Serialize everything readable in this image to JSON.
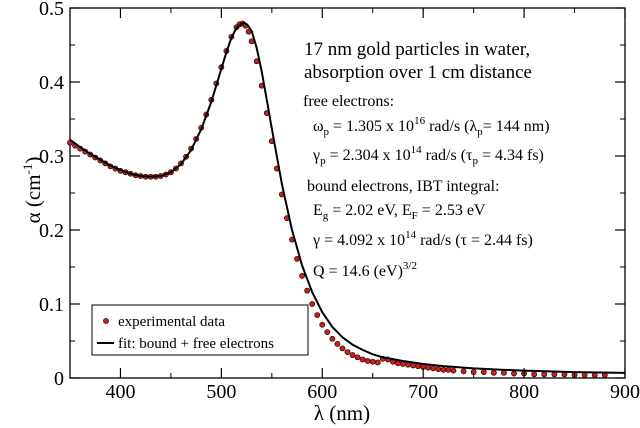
{
  "chart_data": {
    "type": "scatter",
    "xlabel": "λ (nm)",
    "ylabel": "α (cm",
    "ylabel_sup": "-1",
    "ylabel_close": ")",
    "xlim": [
      350,
      900
    ],
    "ylim": [
      0,
      0.5
    ],
    "x_ticks": [
      400,
      500,
      600,
      700,
      800,
      900
    ],
    "y_ticks": [
      0,
      0.1,
      0.2,
      0.3,
      0.4,
      0.5
    ],
    "y_tick_labels": [
      "0",
      "0.1",
      "0.2",
      "0.3",
      "0.4",
      "0.5"
    ],
    "grid": false,
    "legend_position": "bottom-left",
    "series": [
      {
        "name": "experimental data",
        "kind": "markers",
        "color": "#cc1f1a",
        "x": [
          350,
          355,
          360,
          365,
          370,
          375,
          380,
          385,
          390,
          395,
          400,
          405,
          410,
          415,
          420,
          425,
          430,
          435,
          440,
          445,
          450,
          455,
          460,
          465,
          470,
          475,
          480,
          485,
          490,
          495,
          500,
          505,
          510,
          515,
          518,
          521,
          524,
          527,
          530,
          535,
          540,
          545,
          550,
          555,
          560,
          565,
          570,
          575,
          580,
          585,
          590,
          595,
          600,
          605,
          610,
          615,
          620,
          625,
          630,
          635,
          640,
          645,
          650,
          655,
          660,
          665,
          670,
          675,
          680,
          685,
          690,
          695,
          700,
          705,
          710,
          715,
          720,
          725,
          730,
          740,
          750,
          760,
          770,
          780,
          790,
          800,
          810,
          820,
          830,
          840,
          850,
          860,
          870,
          880
        ],
        "y": [
          0.318,
          0.314,
          0.31,
          0.306,
          0.302,
          0.298,
          0.294,
          0.29,
          0.286,
          0.283,
          0.28,
          0.278,
          0.276,
          0.274,
          0.273,
          0.272,
          0.272,
          0.272,
          0.273,
          0.275,
          0.278,
          0.283,
          0.29,
          0.299,
          0.31,
          0.323,
          0.338,
          0.356,
          0.376,
          0.398,
          0.42,
          0.442,
          0.461,
          0.474,
          0.478,
          0.479,
          0.476,
          0.468,
          0.455,
          0.428,
          0.395,
          0.358,
          0.32,
          0.283,
          0.248,
          0.216,
          0.187,
          0.161,
          0.138,
          0.118,
          0.1,
          0.085,
          0.072,
          0.062,
          0.053,
          0.046,
          0.04,
          0.035,
          0.031,
          0.028,
          0.025,
          0.023,
          0.022,
          0.021,
          0.026,
          0.025,
          0.022,
          0.02,
          0.019,
          0.018,
          0.017,
          0.016,
          0.015,
          0.014,
          0.013,
          0.012,
          0.011,
          0.011,
          0.01,
          0.009,
          0.008,
          0.008,
          0.007,
          0.007,
          0.006,
          0.006,
          0.005,
          0.005,
          0.005,
          0.005,
          0.004,
          0.004,
          0.004,
          0.004
        ]
      },
      {
        "name": "fit: bound + free electrons",
        "kind": "line",
        "color": "#000000",
        "x": [
          350,
          360,
          370,
          380,
          390,
          400,
          410,
          420,
          430,
          440,
          450,
          460,
          470,
          480,
          490,
          500,
          505,
          510,
          515,
          520,
          523,
          526,
          530,
          535,
          540,
          545,
          550,
          560,
          570,
          580,
          590,
          600,
          610,
          620,
          630,
          640,
          650,
          660,
          680,
          700,
          720,
          750,
          780,
          800,
          850,
          900
        ],
        "y": [
          0.322,
          0.312,
          0.303,
          0.295,
          0.287,
          0.281,
          0.276,
          0.273,
          0.272,
          0.273,
          0.278,
          0.289,
          0.308,
          0.336,
          0.373,
          0.418,
          0.44,
          0.46,
          0.473,
          0.479,
          0.48,
          0.477,
          0.469,
          0.446,
          0.414,
          0.376,
          0.337,
          0.262,
          0.2,
          0.152,
          0.116,
          0.089,
          0.069,
          0.055,
          0.045,
          0.038,
          0.032,
          0.028,
          0.023,
          0.019,
          0.016,
          0.013,
          0.011,
          0.01,
          0.008,
          0.007
        ]
      }
    ],
    "annotations": [
      {
        "id": "title1",
        "text": "17 nm gold  particles in water,"
      },
      {
        "id": "title2",
        "text": "absorption over 1 cm distance"
      },
      {
        "id": "free",
        "text": "free electrons:"
      },
      {
        "id": "omega",
        "text": "ω",
        "sub": "p",
        "mid": " = 1.305 x 10",
        "sup": "16",
        "end": " rad/s  (λ",
        "sub2": "p",
        "end2": "= 144 nm)"
      },
      {
        "id": "gammap",
        "text": "γ",
        "sub": "p",
        "mid": " = 2.304 x 10",
        "sup": "14",
        "end": " rad/s  (τ",
        "sub2": "p",
        "end2": " = 4.34 fs)"
      },
      {
        "id": "bound",
        "text": "bound electrons, IBT integral:"
      },
      {
        "id": "eg",
        "text": "E",
        "sub": "g",
        "mid": " = 2.02 eV,     E",
        "sub2": "F",
        "end": " = 2.53 eV"
      },
      {
        "id": "gamma",
        "text": "γ = 4.092 x 10",
        "sup": "14",
        "end": " rad/s  (τ = 2.44 fs)"
      },
      {
        "id": "q",
        "text": "Q = 14.6 (eV)",
        "sup": "3/2"
      }
    ]
  }
}
